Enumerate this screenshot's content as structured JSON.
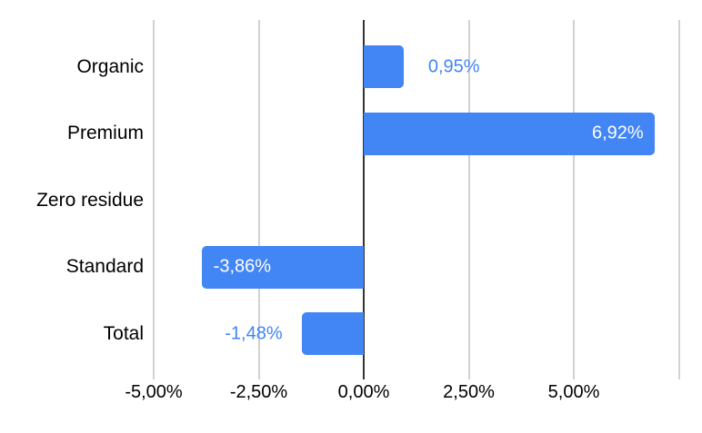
{
  "chart_data": {
    "type": "bar",
    "orientation": "horizontal",
    "title": "",
    "xlabel": "",
    "ylabel": "",
    "categories": [
      "Organic",
      "Premium",
      "Zero residue",
      "Standard",
      "Total"
    ],
    "values": [
      0.95,
      6.92,
      0,
      -3.86,
      -1.48
    ],
    "value_labels": [
      "0,95%",
      "6,92%",
      "",
      "-3,86%",
      "-1,48%"
    ],
    "x_ticks": [
      {
        "v": -5,
        "label": "-5,00%"
      },
      {
        "v": -2.5,
        "label": "-2,50%"
      },
      {
        "v": 0,
        "label": "0,00%"
      },
      {
        "v": 2.5,
        "label": "2,50%"
      },
      {
        "v": 5,
        "label": "5,00%"
      }
    ],
    "extra_gridlines": [
      7.5
    ],
    "xlim": [
      -5.4,
      7.6
    ],
    "grid": "vertical-major",
    "legend": "none",
    "colors": {
      "bar": "#4285f4",
      "label_inside": "#ffffff",
      "label_outside": "#4285f4",
      "gridline": "#d2d2d2",
      "zero_axis": "#333333",
      "text": "#000000"
    }
  }
}
